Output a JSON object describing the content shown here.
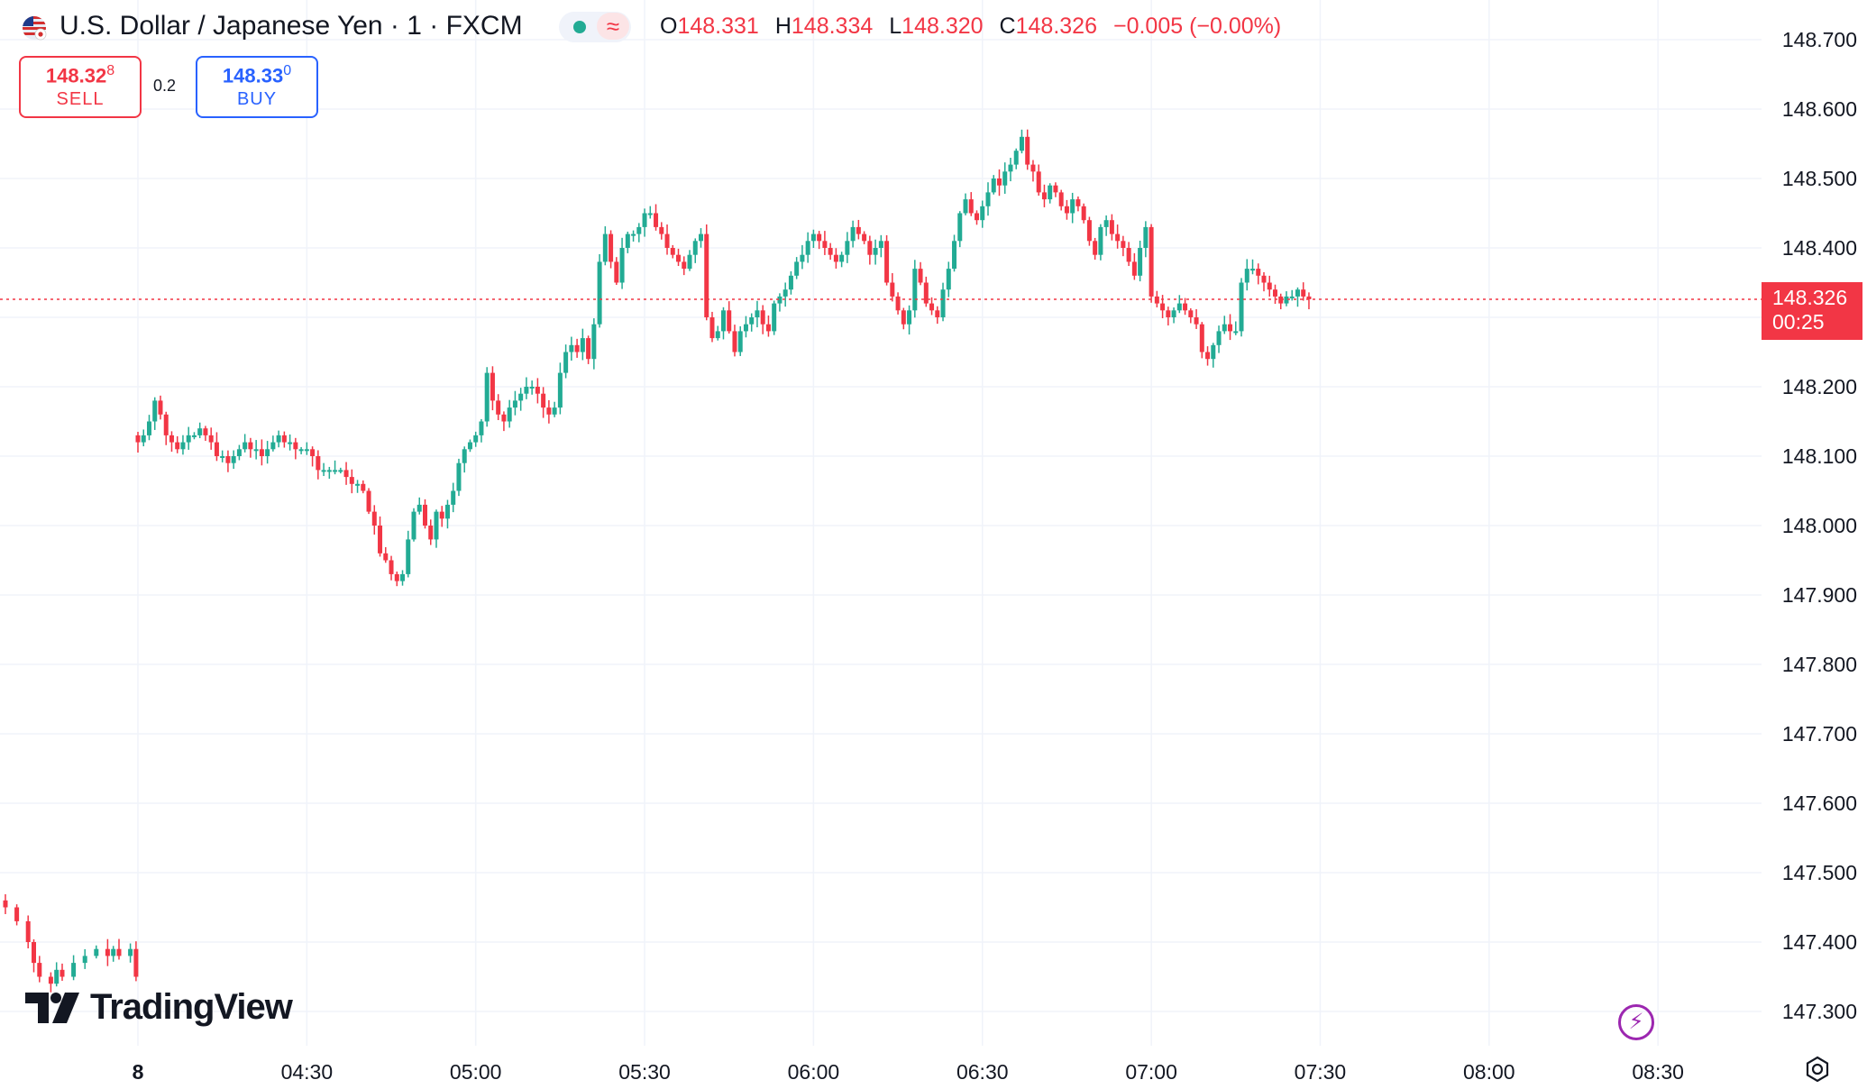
{
  "header": {
    "symbol_title": "U.S. Dollar / Japanese Yen · 1 · FXCM",
    "status_icon": "market-open-dot",
    "delay_icon": "wave-icon",
    "ohlc": {
      "o_label": "O",
      "o_value": "148.331",
      "h_label": "H",
      "h_value": "148.334",
      "l_label": "L",
      "l_value": "148.320",
      "c_label": "C",
      "c_value": "148.326",
      "change": "−0.005 (−0.00%)"
    }
  },
  "trade": {
    "sell_price_main": "148.32",
    "sell_price_pip": "8",
    "sell_label": "SELL",
    "spread": "0.2",
    "buy_price_main": "148.33",
    "buy_price_pip": "0",
    "buy_label": "BUY"
  },
  "last_price": {
    "value": "148.326",
    "countdown": "00:25"
  },
  "branding": {
    "logo_text": "TradingView"
  },
  "colors": {
    "up": "#22ab94",
    "down": "#f23645",
    "grid": "#f0f3fa",
    "axis_text": "#131722"
  },
  "chart_data": {
    "type": "candlestick",
    "title": "U.S. Dollar / Japanese Yen · 1 · FXCM",
    "y_axis_side": "right",
    "ylim": [
      147.25,
      148.74
    ],
    "y_ticks": [
      "148.700",
      "148.600",
      "148.500",
      "148.400",
      "148.300",
      "148.200",
      "148.100",
      "148.000",
      "147.900",
      "147.800",
      "147.700",
      "147.600",
      "147.500",
      "147.400",
      "147.300"
    ],
    "x_ticks": [
      {
        "label": "8",
        "minutes": 0
      },
      {
        "label": "04:30",
        "minutes": 270
      },
      {
        "label": "05:00",
        "minutes": 300
      },
      {
        "label": "05:30",
        "minutes": 330
      },
      {
        "label": "06:00",
        "minutes": 360
      },
      {
        "label": "06:30",
        "minutes": 390
      },
      {
        "label": "07:00",
        "minutes": 420
      },
      {
        "label": "07:30",
        "minutes": 450
      },
      {
        "label": "08:00",
        "minutes": 480
      },
      {
        "label": "08:30",
        "minutes": 510
      }
    ],
    "x_tick_bold": [
      "8"
    ],
    "last_close": 148.326,
    "grid": true,
    "series": [
      {
        "segment": "before-gap",
        "path": [
          [
            -24,
            147.45
          ],
          [
            -22,
            147.43
          ],
          [
            -20,
            147.4
          ],
          [
            -19,
            147.37
          ],
          [
            -18,
            147.35
          ],
          [
            -16,
            147.34
          ],
          [
            -15,
            147.36
          ],
          [
            -14,
            147.35
          ],
          [
            -12,
            147.37
          ],
          [
            -10,
            147.38
          ],
          [
            -8,
            147.39
          ],
          [
            -6,
            147.38
          ],
          [
            -5,
            147.39
          ],
          [
            -4,
            147.38
          ],
          [
            -2,
            147.39
          ],
          [
            -1,
            147.35
          ]
        ]
      },
      {
        "segment": "session",
        "path": [
          [
            0,
            148.12
          ],
          [
            1,
            148.13
          ],
          [
            2,
            148.15
          ],
          [
            3,
            148.18
          ],
          [
            4,
            148.16
          ],
          [
            5,
            148.13
          ],
          [
            6,
            148.12
          ],
          [
            7,
            148.11
          ],
          [
            8,
            148.12
          ],
          [
            9,
            148.13
          ],
          [
            10,
            148.13
          ],
          [
            11,
            148.14
          ],
          [
            12,
            148.13
          ],
          [
            13,
            148.12
          ],
          [
            14,
            148.1
          ],
          [
            15,
            148.1
          ],
          [
            16,
            148.09
          ],
          [
            17,
            148.1
          ],
          [
            18,
            148.11
          ],
          [
            19,
            148.12
          ],
          [
            20,
            148.11
          ],
          [
            21,
            148.11
          ],
          [
            22,
            148.1
          ],
          [
            23,
            148.11
          ],
          [
            24,
            148.12
          ],
          [
            25,
            148.13
          ],
          [
            26,
            148.12
          ],
          [
            27,
            148.12
          ],
          [
            28,
            148.11
          ],
          [
            29,
            148.11
          ],
          [
            30,
            148.11
          ],
          [
            31,
            148.1
          ],
          [
            32,
            148.08
          ],
          [
            33,
            148.08
          ],
          [
            34,
            148.08
          ],
          [
            35,
            148.08
          ],
          [
            36,
            148.08
          ],
          [
            37,
            148.07
          ],
          [
            38,
            148.06
          ],
          [
            39,
            148.06
          ],
          [
            40,
            148.05
          ],
          [
            41,
            148.02
          ],
          [
            42,
            148.0
          ],
          [
            43,
            147.96
          ],
          [
            44,
            147.95
          ],
          [
            45,
            147.93
          ],
          [
            46,
            147.92
          ],
          [
            47,
            147.93
          ],
          [
            48,
            147.98
          ],
          [
            49,
            148.02
          ],
          [
            50,
            148.03
          ],
          [
            51,
            148.0
          ],
          [
            52,
            147.98
          ],
          [
            53,
            148.02
          ],
          [
            54,
            148.01
          ],
          [
            55,
            148.03
          ],
          [
            56,
            148.05
          ],
          [
            57,
            148.09
          ],
          [
            58,
            148.11
          ],
          [
            59,
            148.12
          ],
          [
            60,
            148.13
          ],
          [
            61,
            148.15
          ],
          [
            62,
            148.22
          ],
          [
            63,
            148.18
          ],
          [
            64,
            148.16
          ],
          [
            65,
            148.15
          ],
          [
            66,
            148.17
          ],
          [
            67,
            148.18
          ],
          [
            68,
            148.19
          ],
          [
            69,
            148.2
          ],
          [
            70,
            148.2
          ],
          [
            71,
            148.19
          ],
          [
            72,
            148.17
          ],
          [
            73,
            148.16
          ],
          [
            74,
            148.17
          ],
          [
            75,
            148.22
          ],
          [
            76,
            148.25
          ],
          [
            77,
            148.26
          ],
          [
            78,
            148.25
          ],
          [
            79,
            148.27
          ],
          [
            80,
            148.24
          ],
          [
            81,
            148.29
          ],
          [
            82,
            148.38
          ],
          [
            83,
            148.42
          ],
          [
            84,
            148.38
          ],
          [
            85,
            148.35
          ],
          [
            86,
            148.4
          ],
          [
            87,
            148.42
          ],
          [
            88,
            148.42
          ],
          [
            89,
            148.43
          ],
          [
            90,
            148.45
          ],
          [
            91,
            148.45
          ],
          [
            92,
            148.43
          ],
          [
            93,
            148.42
          ],
          [
            94,
            148.4
          ],
          [
            95,
            148.39
          ],
          [
            96,
            148.38
          ],
          [
            97,
            148.37
          ],
          [
            98,
            148.39
          ],
          [
            99,
            148.41
          ],
          [
            100,
            148.42
          ],
          [
            101,
            148.3
          ],
          [
            102,
            148.27
          ],
          [
            103,
            148.28
          ],
          [
            104,
            148.31
          ],
          [
            105,
            148.28
          ],
          [
            106,
            148.25
          ],
          [
            107,
            148.28
          ],
          [
            108,
            148.29
          ],
          [
            109,
            148.3
          ],
          [
            110,
            148.31
          ],
          [
            111,
            148.29
          ],
          [
            112,
            148.28
          ],
          [
            113,
            148.32
          ],
          [
            114,
            148.33
          ],
          [
            115,
            148.34
          ],
          [
            116,
            148.36
          ],
          [
            117,
            148.38
          ],
          [
            118,
            148.39
          ],
          [
            119,
            148.41
          ],
          [
            120,
            148.42
          ],
          [
            121,
            148.41
          ],
          [
            122,
            148.4
          ],
          [
            123,
            148.39
          ],
          [
            124,
            148.38
          ],
          [
            125,
            148.39
          ],
          [
            126,
            148.41
          ],
          [
            127,
            148.43
          ],
          [
            128,
            148.42
          ],
          [
            129,
            148.41
          ],
          [
            130,
            148.39
          ],
          [
            131,
            148.4
          ],
          [
            132,
            148.41
          ],
          [
            133,
            148.35
          ],
          [
            134,
            148.33
          ],
          [
            135,
            148.31
          ],
          [
            136,
            148.29
          ],
          [
            137,
            148.31
          ],
          [
            138,
            148.37
          ],
          [
            139,
            148.35
          ],
          [
            140,
            148.32
          ],
          [
            141,
            148.31
          ],
          [
            142,
            148.3
          ],
          [
            143,
            148.34
          ],
          [
            144,
            148.37
          ],
          [
            145,
            148.41
          ],
          [
            146,
            148.45
          ],
          [
            147,
            148.47
          ],
          [
            148,
            148.45
          ],
          [
            149,
            148.44
          ],
          [
            150,
            148.46
          ],
          [
            151,
            148.48
          ],
          [
            152,
            148.5
          ],
          [
            153,
            148.49
          ],
          [
            154,
            148.51
          ],
          [
            155,
            148.52
          ],
          [
            156,
            148.54
          ],
          [
            157,
            148.56
          ],
          [
            158,
            148.52
          ],
          [
            159,
            148.51
          ],
          [
            160,
            148.48
          ],
          [
            161,
            148.47
          ],
          [
            162,
            148.49
          ],
          [
            163,
            148.48
          ],
          [
            164,
            148.46
          ],
          [
            165,
            148.45
          ],
          [
            166,
            148.47
          ],
          [
            167,
            148.46
          ],
          [
            168,
            148.44
          ],
          [
            169,
            148.41
          ],
          [
            170,
            148.39
          ],
          [
            171,
            148.43
          ],
          [
            172,
            148.44
          ],
          [
            173,
            148.42
          ],
          [
            174,
            148.41
          ],
          [
            175,
            148.4
          ],
          [
            176,
            148.38
          ],
          [
            177,
            148.36
          ],
          [
            178,
            148.4
          ],
          [
            179,
            148.43
          ],
          [
            180,
            148.33
          ],
          [
            181,
            148.32
          ],
          [
            182,
            148.31
          ],
          [
            183,
            148.3
          ],
          [
            184,
            148.31
          ],
          [
            185,
            148.32
          ],
          [
            186,
            148.31
          ],
          [
            187,
            148.3
          ],
          [
            188,
            148.29
          ],
          [
            189,
            148.25
          ],
          [
            190,
            148.24
          ],
          [
            191,
            148.26
          ],
          [
            192,
            148.28
          ],
          [
            193,
            148.29
          ],
          [
            194,
            148.28
          ],
          [
            195,
            148.28
          ],
          [
            196,
            148.35
          ],
          [
            197,
            148.37
          ],
          [
            198,
            148.37
          ],
          [
            199,
            148.36
          ],
          [
            200,
            148.35
          ],
          [
            201,
            148.34
          ],
          [
            202,
            148.33
          ],
          [
            203,
            148.32
          ],
          [
            204,
            148.33
          ],
          [
            205,
            148.33
          ],
          [
            206,
            148.34
          ],
          [
            207,
            148.33
          ],
          [
            208,
            148.326
          ]
        ]
      }
    ]
  }
}
